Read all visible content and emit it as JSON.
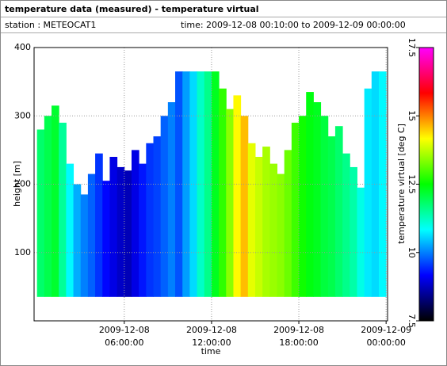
{
  "header": {
    "title": "temperature data (measured) - temperature virtual",
    "station": "station : METEOCAT1",
    "time": "time: 2009-12-08 00:10:00 to 2009-12-09 00:00:00"
  },
  "chart_data": {
    "type": "heatmap",
    "xlabel": "time",
    "ylabel": "height [m]",
    "colorbar_label": "temperature virtual [deg C]",
    "x": [
      0.25,
      0.75,
      1.25,
      1.75,
      2.25,
      2.75,
      3.25,
      3.75,
      4.25,
      4.75,
      5.25,
      5.75,
      6.25,
      6.75,
      7.25,
      7.75,
      8.25,
      8.75,
      9.25,
      9.75,
      10.25,
      10.75,
      11.25,
      11.75,
      12.25,
      12.75,
      13.25,
      13.75,
      14.25,
      14.75,
      15.25,
      15.75,
      16.25,
      16.75,
      17.25,
      17.75,
      18.25,
      18.75,
      19.25,
      19.75,
      20.25,
      20.75,
      21.25,
      21.75,
      22.25,
      22.75,
      23.25,
      23.75
    ],
    "tops": [
      280,
      300,
      315,
      290,
      230,
      200,
      185,
      215,
      245,
      205,
      240,
      225,
      220,
      250,
      230,
      260,
      270,
      300,
      320,
      365,
      365,
      365,
      365,
      365,
      365,
      340,
      310,
      330,
      300,
      260,
      240,
      255,
      230,
      215,
      250,
      290,
      300,
      335,
      320,
      300,
      270,
      285,
      245,
      225,
      195,
      340,
      365,
      365
    ],
    "values": [
      11.8,
      12.0,
      12.2,
      11.5,
      10.8,
      10.3,
      10.0,
      9.8,
      9.5,
      9.2,
      9.0,
      8.8,
      8.7,
      9.0,
      9.3,
      9.5,
      9.6,
      9.8,
      10.0,
      9.7,
      10.2,
      10.6,
      11.2,
      11.6,
      12.3,
      12.8,
      13.4,
      14.2,
      14.6,
      14.0,
      13.8,
      13.6,
      13.5,
      13.4,
      13.2,
      12.9,
      12.6,
      12.4,
      12.3,
      12.1,
      12.0,
      11.8,
      11.6,
      11.4,
      11.0,
      10.7,
      10.6,
      10.8
    ],
    "height_min": 35,
    "xlim": [
      -0.2,
      24.1
    ],
    "xticks": [
      {
        "value": 6,
        "label": "2009-12-08\n06:00:00"
      },
      {
        "value": 12,
        "label": "2009-12-08\n12:00:00"
      },
      {
        "value": 18,
        "label": "2009-12-08\n18:00:00"
      },
      {
        "value": 24,
        "label": "2009-12-09\n00:00:00"
      }
    ],
    "ylim": [
      0,
      400
    ],
    "yticks": [
      100,
      200,
      300,
      400
    ],
    "clim": [
      7.5,
      17.5
    ],
    "cticks": [
      7.5,
      10,
      12.5,
      15,
      17.5
    ],
    "colormap": [
      "#000000",
      "#0000ff",
      "#00ffff",
      "#00ff00",
      "#ffff00",
      "#ff0000",
      "#ff00ff"
    ],
    "grid": true
  }
}
